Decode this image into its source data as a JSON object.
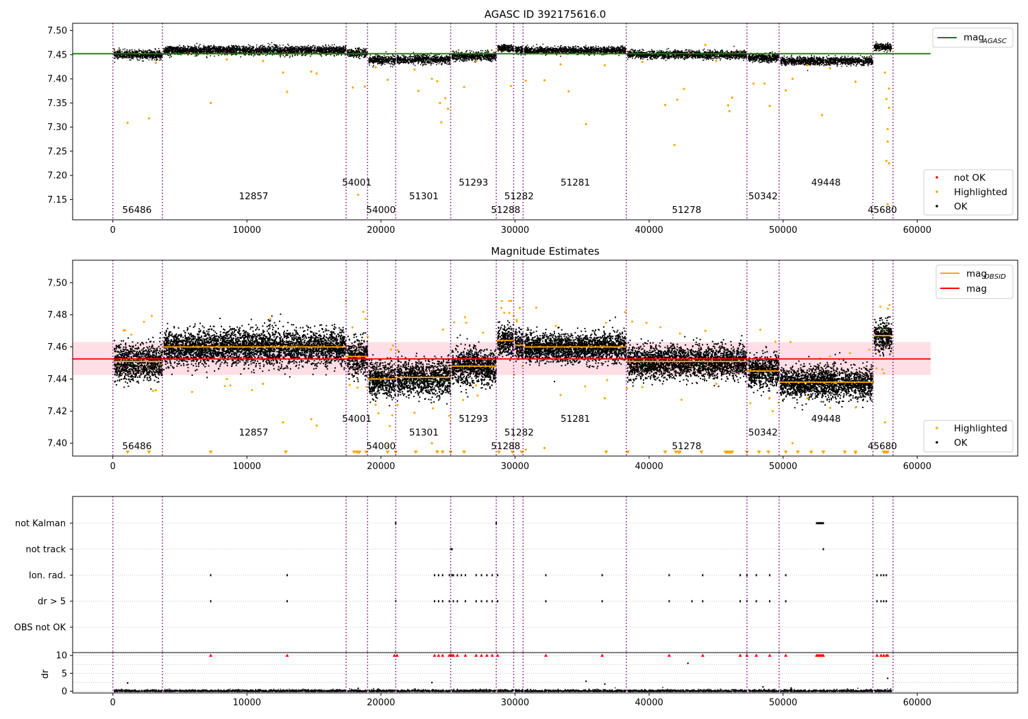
{
  "figure": {
    "title": "AGASC ID 392175616.0",
    "colors": {
      "ok": "#000000",
      "highlighted": "#ffa500",
      "not_ok": "#ff0000",
      "mag_agasc": "#008000",
      "mag_obsid": "#ffa500",
      "mag": "#ff0000",
      "mag_band": "#ffc0cb",
      "obs_boundary": "#800080"
    }
  },
  "chart_data": [
    {
      "type": "scatter",
      "title": "AGASC ID 392175616.0",
      "xlim": [
        -3000,
        67500
      ],
      "ylim": [
        7.108,
        7.515
      ],
      "xticks": [
        "0",
        "10000",
        "20000",
        "30000",
        "40000",
        "50000",
        "60000"
      ],
      "xtick_values": [
        0,
        10000,
        20000,
        30000,
        40000,
        50000,
        60000
      ],
      "yticks": [
        "7.15",
        "7.20",
        "7.25",
        "7.30",
        "7.35",
        "7.40",
        "7.45",
        "7.50"
      ],
      "ytick_values": [
        7.15,
        7.2,
        7.25,
        7.3,
        7.35,
        7.4,
        7.45,
        7.5
      ],
      "mag_agasc": 7.452,
      "mag_agasc_xrange": [
        -3000,
        61000
      ],
      "segments": [
        {
          "obsid": "56486",
          "x": [
            0,
            3700
          ],
          "mean": 7.451,
          "spread": 0.01
        },
        {
          "obsid": "12857",
          "x": [
            3700,
            17400
          ],
          "mean": 7.46,
          "spread": 0.01
        },
        {
          "obsid": "54001",
          "x": [
            17400,
            19000
          ],
          "mean": 7.454,
          "spread": 0.01
        },
        {
          "obsid": "54000",
          "x": [
            19000,
            21100
          ],
          "mean": 7.44,
          "spread": 0.01
        },
        {
          "obsid": "51301",
          "x": [
            21100,
            25200
          ],
          "mean": 7.441,
          "spread": 0.01
        },
        {
          "obsid": "51293",
          "x": [
            25200,
            28600
          ],
          "mean": 7.448,
          "spread": 0.01
        },
        {
          "obsid": "51288",
          "x": [
            28600,
            29900
          ],
          "mean": 7.464,
          "spread": 0.008
        },
        {
          "obsid": "51282",
          "x": [
            29900,
            30600
          ],
          "mean": 7.461,
          "spread": 0.008
        },
        {
          "obsid": "51281",
          "x": [
            30600,
            38300
          ],
          "mean": 7.46,
          "spread": 0.008
        },
        {
          "obsid": "51278",
          "x": [
            38300,
            47300
          ],
          "mean": 7.451,
          "spread": 0.009
        },
        {
          "obsid": "50342",
          "x": [
            47300,
            49700
          ],
          "mean": 7.445,
          "spread": 0.009
        },
        {
          "obsid": "49448",
          "x": [
            49700,
            56700
          ],
          "mean": 7.438,
          "spread": 0.009
        },
        {
          "obsid": "45680",
          "x": [
            56700,
            58100
          ],
          "mean": 7.467,
          "spread": 0.008
        }
      ],
      "highlighted_points": [
        [
          1100,
          7.309
        ],
        [
          2700,
          7.318
        ],
        [
          7300,
          7.35
        ],
        [
          13000,
          7.373
        ],
        [
          12700,
          7.413
        ],
        [
          14800,
          7.415
        ],
        [
          15200,
          7.411
        ],
        [
          17900,
          7.382
        ],
        [
          18300,
          7.16
        ],
        [
          18800,
          7.384
        ],
        [
          20500,
          7.398
        ],
        [
          22800,
          7.375
        ],
        [
          23800,
          7.4
        ],
        [
          24200,
          7.395
        ],
        [
          24400,
          7.35
        ],
        [
          24800,
          7.36
        ],
        [
          25000,
          7.338
        ],
        [
          24500,
          7.31
        ],
        [
          26200,
          7.383
        ],
        [
          29700,
          7.385
        ],
        [
          30800,
          7.396
        ],
        [
          32200,
          7.397
        ],
        [
          34000,
          7.374
        ],
        [
          35300,
          7.306
        ],
        [
          36700,
          7.428
        ],
        [
          41200,
          7.346
        ],
        [
          41900,
          7.263
        ],
        [
          42100,
          7.357
        ],
        [
          42600,
          7.379
        ],
        [
          45900,
          7.345
        ],
        [
          46000,
          7.333
        ],
        [
          46200,
          7.361
        ],
        [
          47800,
          7.39
        ],
        [
          48600,
          7.39
        ],
        [
          49000,
          7.344
        ],
        [
          50200,
          7.376
        ],
        [
          50700,
          7.4
        ],
        [
          52900,
          7.325
        ],
        [
          55400,
          7.394
        ],
        [
          57700,
          7.23
        ],
        [
          57800,
          7.14
        ],
        [
          57900,
          7.225
        ],
        [
          57800,
          7.296
        ],
        [
          57700,
          7.358
        ],
        [
          57900,
          7.38
        ],
        [
          57600,
          7.413
        ],
        [
          57800,
          7.27
        ],
        [
          57900,
          7.34
        ],
        [
          3200,
          7.433
        ],
        [
          8500,
          7.44
        ],
        [
          11200,
          7.437
        ],
        [
          19600,
          7.424
        ],
        [
          22500,
          7.419
        ],
        [
          27100,
          7.436
        ],
        [
          33400,
          7.43
        ],
        [
          39500,
          7.435
        ],
        [
          44200,
          7.47
        ],
        [
          45000,
          7.437
        ],
        [
          51800,
          7.428
        ],
        [
          53500,
          7.422
        ]
      ],
      "not_ok_points": [],
      "legend_lines": [
        {
          "label": "mag",
          "sub": "AGASC"
        }
      ],
      "legend_points": [
        "not OK",
        "Highlighted",
        "OK"
      ]
    },
    {
      "type": "scatter",
      "title": "Magnitude Estimates",
      "xlim": [
        -3000,
        67500
      ],
      "ylim": [
        7.392,
        7.514
      ],
      "xticks": [
        "0",
        "10000",
        "20000",
        "30000",
        "40000",
        "50000",
        "60000"
      ],
      "xtick_values": [
        0,
        10000,
        20000,
        30000,
        40000,
        50000,
        60000
      ],
      "yticks": [
        "7.40",
        "7.42",
        "7.44",
        "7.46",
        "7.48",
        "7.50"
      ],
      "ytick_values": [
        7.4,
        7.42,
        7.44,
        7.46,
        7.48,
        7.5
      ],
      "mag": 7.4525,
      "mag_band": [
        7.4425,
        7.463
      ],
      "mag_xrange": [
        -3000,
        61000
      ],
      "legend_lines": [
        {
          "label": "mag",
          "sub": "OBSID"
        },
        {
          "label": "mag",
          "sub": ""
        }
      ],
      "legend_points": [
        "Highlighted",
        "OK"
      ],
      "below_range_markers": [
        1100,
        2700,
        7300,
        12900,
        18000,
        18200,
        18300,
        18400,
        18900,
        20500,
        21100,
        22600,
        24200,
        24600,
        25200,
        26200,
        28800,
        29800,
        30500,
        36800,
        38400,
        41200,
        42000,
        42200,
        42300,
        43900,
        45700,
        45800,
        45900,
        46000,
        46100,
        46200,
        47300,
        48200,
        48900,
        50200,
        51100,
        52100,
        53000,
        54600,
        55400,
        57500,
        57600,
        57700,
        57800
      ]
    },
    {
      "type": "scatter",
      "title": "",
      "xlim": [
        -3000,
        67500
      ],
      "flag_rows": [
        "not Kalman",
        "not track",
        "Ion. rad.",
        "dr > 5",
        "OBS not OK"
      ],
      "flags": {
        "not Kalman": [
          21100,
          28600,
          52500,
          52600,
          52700,
          52800,
          52900,
          53000
        ],
        "not track": [
          25200,
          25300,
          53000
        ],
        "Ion. rad.": [
          7300,
          13000,
          24000,
          24300,
          24600,
          25100,
          25300,
          25400,
          25700,
          26000,
          26300,
          27100,
          27500,
          27900,
          28300,
          28700,
          32300,
          36500,
          41500,
          44000,
          46800,
          47300,
          48000,
          49000,
          50200,
          57000,
          57300,
          57500,
          57700
        ],
        "dr > 5": [
          7300,
          13000,
          21100,
          24000,
          24300,
          24600,
          25100,
          25400,
          25700,
          26300,
          27100,
          27500,
          27900,
          28300,
          28700,
          32300,
          36500,
          41500,
          43200,
          44000,
          46800,
          47300,
          48000,
          49000,
          50200,
          57000,
          57300,
          57500,
          57700
        ],
        "OBS not OK": []
      },
      "dr_yticks": [
        "0",
        "5",
        "10"
      ],
      "dr_ytick_values": [
        0,
        5,
        10
      ],
      "dr_ylabel": "dr",
      "dr_ylim": [
        -0.5,
        10.8
      ],
      "dr_capped_points": [
        7300,
        13000,
        21000,
        21200,
        24000,
        24300,
        24600,
        25100,
        25200,
        25300,
        25400,
        25700,
        26300,
        27100,
        27500,
        27900,
        28300,
        28700,
        32300,
        36500,
        41500,
        44000,
        46800,
        47300,
        48000,
        49000,
        50200,
        52500,
        52600,
        52700,
        52800,
        52900,
        53000,
        57000,
        57300,
        57500,
        57700,
        57800
      ],
      "dr_outliers": [
        [
          1100,
          2.3
        ],
        [
          18300,
          0.8
        ],
        [
          23800,
          2.4
        ],
        [
          35300,
          2.8
        ],
        [
          36700,
          2.0
        ],
        [
          42900,
          7.8
        ],
        [
          57800,
          3.6
        ],
        [
          48500,
          1.2
        ],
        [
          50600,
          0.9
        ]
      ]
    }
  ],
  "obs_boundaries": [
    0,
    3700,
    17400,
    19000,
    21100,
    25200,
    28600,
    29900,
    30600,
    38300,
    47300,
    49700,
    56700,
    58200
  ],
  "obs_labels": [
    {
      "obsid": "56486",
      "x": 1800,
      "row": 2
    },
    {
      "obsid": "12857",
      "x": 10500,
      "row": 1
    },
    {
      "obsid": "54001",
      "x": 18200,
      "row": 0
    },
    {
      "obsid": "54000",
      "x": 20000,
      "row": 2
    },
    {
      "obsid": "51301",
      "x": 23200,
      "row": 1
    },
    {
      "obsid": "51293",
      "x": 26900,
      "row": 0
    },
    {
      "obsid": "51288",
      "x": 29300,
      "row": 2
    },
    {
      "obsid": "51282",
      "x": 30300,
      "row": 1
    },
    {
      "obsid": "51281",
      "x": 34500,
      "row": 0
    },
    {
      "obsid": "51278",
      "x": 42800,
      "row": 2
    },
    {
      "obsid": "50342",
      "x": 48500,
      "row": 1
    },
    {
      "obsid": "49448",
      "x": 53200,
      "row": 0
    },
    {
      "obsid": "45680",
      "x": 57400,
      "row": 2
    }
  ]
}
